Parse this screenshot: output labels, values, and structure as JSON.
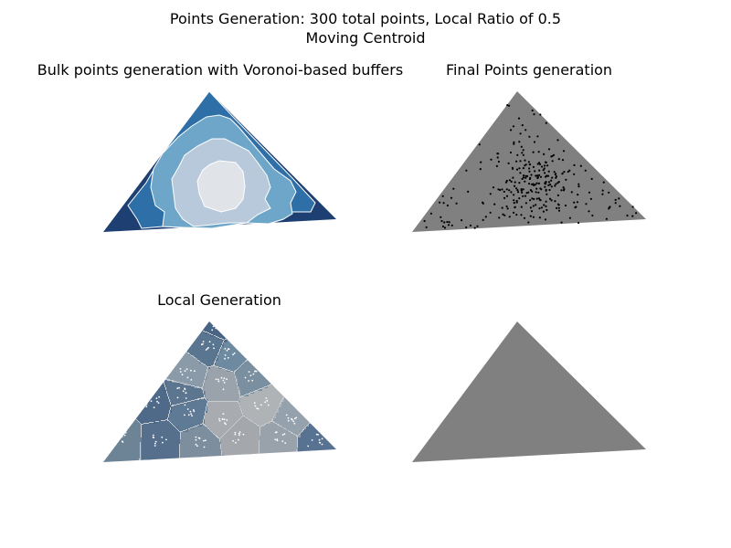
{
  "suptitle": {
    "line1": "Points Generation: 300 total points, Local Ratio of 0.5",
    "line2": "Moving Centroid"
  },
  "chart_data": [
    {
      "type": "other",
      "panel": "top-left",
      "title": "Bulk points generation with Voronoi-based buffers",
      "description_layers": [
        "outer ring",
        "middle ring",
        "inner ring",
        "core"
      ],
      "colors": [
        "#1d3f72",
        "#2f6fa8",
        "#6ea6c9",
        "#b7c9da",
        "#e0e4e9"
      ]
    },
    {
      "type": "scatter",
      "panel": "top-right",
      "title": "Final Points generation",
      "total_points": 300,
      "local_ratio": 0.5,
      "colors": {
        "triangle": "#808080",
        "points": "#000000"
      }
    },
    {
      "type": "other",
      "panel": "bottom-left",
      "title": "Local Generation",
      "cell_count": 18,
      "colors": {
        "points": "#ffffff",
        "edges": "#c8cdd2"
      }
    },
    {
      "type": "other",
      "panel": "bottom-right",
      "title": "",
      "colors": {
        "triangle": "#808080"
      }
    }
  ]
}
